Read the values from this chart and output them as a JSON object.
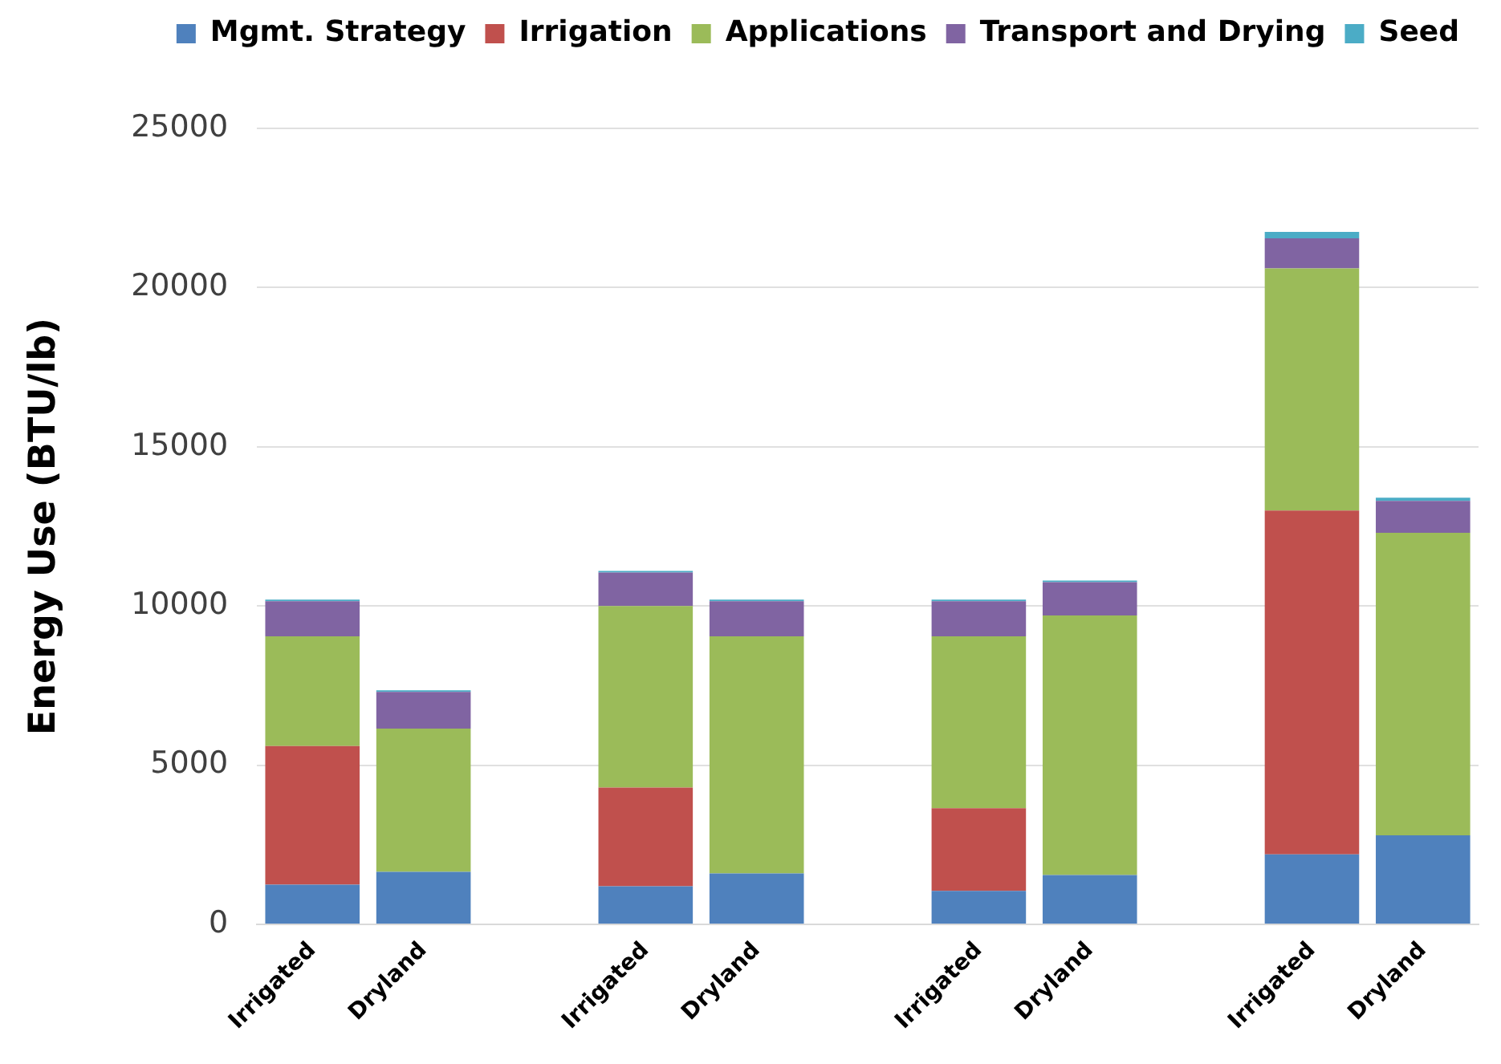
{
  "chart_data": {
    "type": "bar",
    "stacked": true,
    "ylabel": "Energy Use (BTU/lb)",
    "categories": [
      "Irrigated",
      "Dryland",
      null,
      "Irrigated",
      "Dryland",
      null,
      "Irrigated",
      "Dryland",
      null,
      "Irrigated",
      "Dryland"
    ],
    "series": [
      {
        "name": "Mgmt. Strategy",
        "color": "#4f81bd",
        "values": [
          1250,
          1650,
          null,
          1200,
          1600,
          null,
          1050,
          1550,
          null,
          2200,
          2800
        ]
      },
      {
        "name": "Irrigation",
        "color": "#c0504d",
        "values": [
          4350,
          0,
          null,
          3100,
          0,
          null,
          2600,
          0,
          null,
          10800,
          0
        ]
      },
      {
        "name": "Applications",
        "color": "#9bbb59",
        "values": [
          3450,
          4500,
          null,
          5700,
          7450,
          null,
          5400,
          8150,
          null,
          7600,
          9500
        ]
      },
      {
        "name": "Transport and Drying",
        "color": "#8064a2",
        "values": [
          1100,
          1150,
          null,
          1050,
          1100,
          null,
          1100,
          1050,
          null,
          950,
          1000
        ]
      },
      {
        "name": "Seed",
        "color": "#4bacc6",
        "values": [
          50,
          50,
          null,
          50,
          50,
          null,
          50,
          50,
          null,
          200,
          100
        ]
      }
    ],
    "ylim": [
      0,
      25000
    ],
    "yticks": [
      0,
      5000,
      10000,
      15000,
      20000,
      25000
    ],
    "grid": "y",
    "legend": "top"
  }
}
